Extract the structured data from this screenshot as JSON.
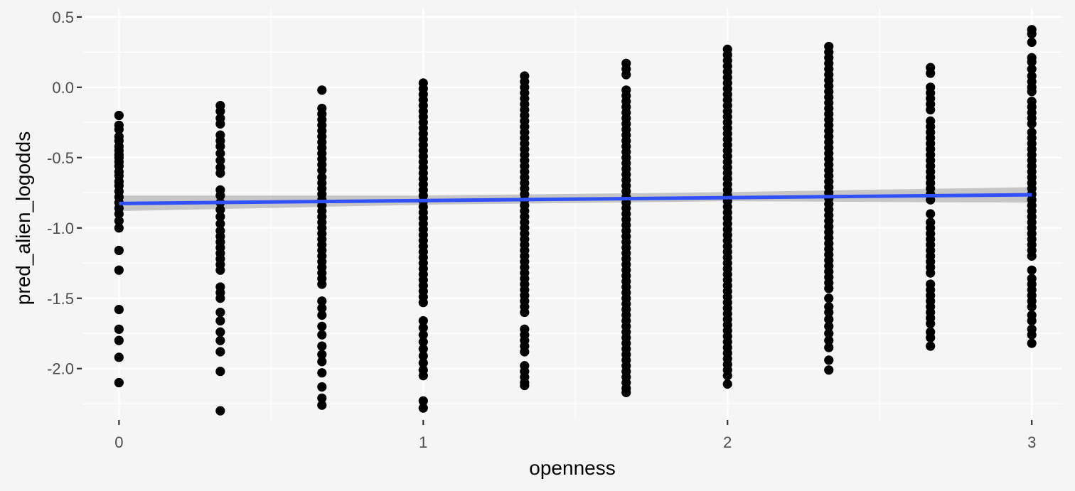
{
  "chart_data": {
    "type": "scatter",
    "xlabel": "openness",
    "ylabel": "pred_alien_logodds",
    "xlim": [
      -0.12,
      3.1
    ],
    "ylim": [
      -2.36,
      0.56
    ],
    "x_ticks": [
      0,
      1,
      2,
      3
    ],
    "x_tick_labels": [
      "0",
      "1",
      "2",
      "3"
    ],
    "y_ticks": [
      -2.0,
      -1.5,
      -1.0,
      -0.5,
      0.0,
      0.5
    ],
    "y_tick_labels": [
      "-2.0",
      "-1.5",
      "-1.0",
      "-0.5",
      "0.0",
      "0.5"
    ],
    "grid": true,
    "legend": "none",
    "colors": {
      "background": "#f5f5f5",
      "grid": "#ffffff",
      "points": "#000000",
      "fit_line": "#3050f8",
      "confidence_band": "#bdbdbd"
    },
    "series": [
      {
        "type": "points",
        "groups": [
          {
            "x": 0.0,
            "y": [
              -0.2,
              -0.27,
              -0.3,
              -0.35,
              -0.38,
              -0.42,
              -0.45,
              -0.48,
              -0.5,
              -0.53,
              -0.56,
              -0.6,
              -0.63,
              -0.67,
              -0.7,
              -0.74,
              -0.78,
              -0.82,
              -0.86,
              -0.9,
              -0.95,
              -1.0,
              -1.16,
              -1.3,
              -1.58,
              -1.72,
              -1.8,
              -1.92,
              -2.1
            ]
          },
          {
            "x": 0.333,
            "y": [
              -0.13,
              -0.17,
              -0.22,
              -0.26,
              -0.34,
              -0.38,
              -0.42,
              -0.47,
              -0.52,
              -0.57,
              -0.61,
              -0.73,
              -0.77,
              -0.82,
              -0.87,
              -0.92,
              -0.97,
              -1.02,
              -1.06,
              -1.1,
              -1.14,
              -1.18,
              -1.22,
              -1.26,
              -1.3,
              -1.42,
              -1.46,
              -1.5,
              -1.6,
              -1.66,
              -1.74,
              -1.8,
              -1.88,
              -2.02,
              -2.3
            ]
          },
          {
            "x": 0.667,
            "y": [
              -0.02,
              -0.15,
              -0.19,
              -0.23,
              -0.27,
              -0.31,
              -0.35,
              -0.39,
              -0.43,
              -0.47,
              -0.51,
              -0.55,
              -0.59,
              -0.64,
              -0.68,
              -0.72,
              -0.76,
              -0.8,
              -0.84,
              -0.88,
              -0.92,
              -0.96,
              -1.0,
              -1.04,
              -1.08,
              -1.12,
              -1.16,
              -1.2,
              -1.24,
              -1.28,
              -1.32,
              -1.36,
              -1.4,
              -1.52,
              -1.57,
              -1.62,
              -1.7,
              -1.76,
              -1.84,
              -1.9,
              -1.95,
              -2.03,
              -2.13,
              -2.21,
              -2.26
            ]
          },
          {
            "x": 1.0,
            "y": [
              0.03,
              -0.01,
              -0.05,
              -0.09,
              -0.13,
              -0.17,
              -0.21,
              -0.25,
              -0.29,
              -0.33,
              -0.37,
              -0.41,
              -0.45,
              -0.49,
              -0.53,
              -0.57,
              -0.61,
              -0.65,
              -0.69,
              -0.73,
              -0.77,
              -0.81,
              -0.85,
              -0.89,
              -0.93,
              -0.97,
              -1.01,
              -1.05,
              -1.09,
              -1.13,
              -1.17,
              -1.21,
              -1.25,
              -1.29,
              -1.33,
              -1.37,
              -1.41,
              -1.45,
              -1.49,
              -1.53,
              -1.66,
              -1.71,
              -1.76,
              -1.81,
              -1.86,
              -1.91,
              -1.96,
              -2.01,
              -2.05,
              -2.23,
              -2.28
            ]
          },
          {
            "x": 1.333,
            "y": [
              0.08,
              0.04,
              0.0,
              -0.04,
              -0.08,
              -0.12,
              -0.16,
              -0.2,
              -0.24,
              -0.28,
              -0.32,
              -0.36,
              -0.4,
              -0.44,
              -0.48,
              -0.52,
              -0.56,
              -0.6,
              -0.64,
              -0.68,
              -0.72,
              -0.76,
              -0.8,
              -0.84,
              -0.88,
              -0.92,
              -0.96,
              -1.0,
              -1.04,
              -1.08,
              -1.12,
              -1.16,
              -1.2,
              -1.24,
              -1.28,
              -1.32,
              -1.36,
              -1.4,
              -1.44,
              -1.48,
              -1.52,
              -1.56,
              -1.6,
              -1.72,
              -1.76,
              -1.8,
              -1.84,
              -1.88,
              -1.98,
              -2.02,
              -2.06,
              -2.1,
              -2.12
            ]
          },
          {
            "x": 1.667,
            "y": [
              0.17,
              0.13,
              0.09,
              -0.02,
              -0.06,
              -0.1,
              -0.14,
              -0.18,
              -0.22,
              -0.26,
              -0.3,
              -0.34,
              -0.38,
              -0.42,
              -0.46,
              -0.5,
              -0.54,
              -0.58,
              -0.62,
              -0.66,
              -0.7,
              -0.74,
              -0.78,
              -0.82,
              -0.86,
              -0.9,
              -0.94,
              -0.98,
              -1.02,
              -1.06,
              -1.1,
              -1.14,
              -1.18,
              -1.22,
              -1.26,
              -1.3,
              -1.34,
              -1.38,
              -1.42,
              -1.46,
              -1.5,
              -1.54,
              -1.58,
              -1.62,
              -1.66,
              -1.7,
              -1.74,
              -1.78,
              -1.82,
              -1.86,
              -1.9,
              -1.94,
              -1.98,
              -2.02,
              -2.06,
              -2.1,
              -2.14,
              -2.17
            ]
          },
          {
            "x": 2.0,
            "y": [
              0.27,
              0.23,
              0.19,
              0.15,
              0.11,
              0.07,
              0.03,
              -0.01,
              -0.05,
              -0.09,
              -0.13,
              -0.17,
              -0.21,
              -0.25,
              -0.29,
              -0.33,
              -0.37,
              -0.41,
              -0.45,
              -0.49,
              -0.53,
              -0.57,
              -0.61,
              -0.65,
              -0.69,
              -0.73,
              -0.77,
              -0.81,
              -0.85,
              -0.89,
              -0.93,
              -0.97,
              -1.01,
              -1.05,
              -1.09,
              -1.13,
              -1.17,
              -1.21,
              -1.25,
              -1.29,
              -1.33,
              -1.37,
              -1.41,
              -1.45,
              -1.49,
              -1.53,
              -1.57,
              -1.61,
              -1.65,
              -1.69,
              -1.73,
              -1.77,
              -1.81,
              -1.85,
              -1.89,
              -1.93,
              -1.97,
              -2.01,
              -2.05,
              -2.11
            ]
          },
          {
            "x": 2.333,
            "y": [
              0.29,
              0.25,
              0.21,
              0.17,
              0.13,
              0.09,
              0.05,
              0.01,
              -0.03,
              -0.07,
              -0.11,
              -0.15,
              -0.19,
              -0.23,
              -0.27,
              -0.31,
              -0.35,
              -0.39,
              -0.43,
              -0.47,
              -0.51,
              -0.55,
              -0.59,
              -0.63,
              -0.67,
              -0.71,
              -0.75,
              -0.79,
              -0.83,
              -0.87,
              -0.91,
              -0.95,
              -0.99,
              -1.03,
              -1.07,
              -1.11,
              -1.15,
              -1.19,
              -1.23,
              -1.27,
              -1.31,
              -1.35,
              -1.39,
              -1.43,
              -1.5,
              -1.56,
              -1.6,
              -1.65,
              -1.7,
              -1.75,
              -1.8,
              -1.85,
              -1.94,
              -2.01
            ]
          },
          {
            "x": 2.667,
            "y": [
              0.14,
              0.1,
              0.0,
              -0.04,
              -0.08,
              -0.12,
              -0.16,
              -0.24,
              -0.28,
              -0.32,
              -0.36,
              -0.4,
              -0.44,
              -0.48,
              -0.52,
              -0.56,
              -0.6,
              -0.64,
              -0.68,
              -0.72,
              -0.76,
              -0.8,
              -0.9,
              -0.96,
              -1.0,
              -1.04,
              -1.08,
              -1.12,
              -1.16,
              -1.2,
              -1.24,
              -1.28,
              -1.32,
              -1.4,
              -1.44,
              -1.48,
              -1.52,
              -1.56,
              -1.6,
              -1.64,
              -1.68,
              -1.74,
              -1.78,
              -1.84
            ]
          },
          {
            "x": 3.0,
            "y": [
              0.41,
              0.38,
              0.32,
              0.21,
              0.18,
              0.13,
              0.08,
              0.04,
              0.0,
              -0.03,
              -0.1,
              -0.14,
              -0.18,
              -0.22,
              -0.26,
              -0.32,
              -0.36,
              -0.4,
              -0.44,
              -0.48,
              -0.52,
              -0.56,
              -0.6,
              -0.64,
              -0.68,
              -0.72,
              -0.76,
              -0.8,
              -0.84,
              -0.88,
              -0.92,
              -0.96,
              -1.0,
              -1.04,
              -1.08,
              -1.12,
              -1.16,
              -1.2,
              -1.3,
              -1.36,
              -1.4,
              -1.44,
              -1.48,
              -1.52,
              -1.56,
              -1.62,
              -1.66,
              -1.72,
              -1.76,
              -1.82
            ]
          }
        ]
      },
      {
        "type": "line",
        "x": [
          0,
          3
        ],
        "y": [
          -0.826,
          -0.764
        ]
      },
      {
        "type": "band",
        "x": [
          0,
          1,
          2,
          3
        ],
        "y_low": [
          -0.88,
          -0.835,
          -0.81,
          -0.82
        ],
        "y_high": [
          -0.77,
          -0.77,
          -0.745,
          -0.71
        ]
      }
    ]
  }
}
